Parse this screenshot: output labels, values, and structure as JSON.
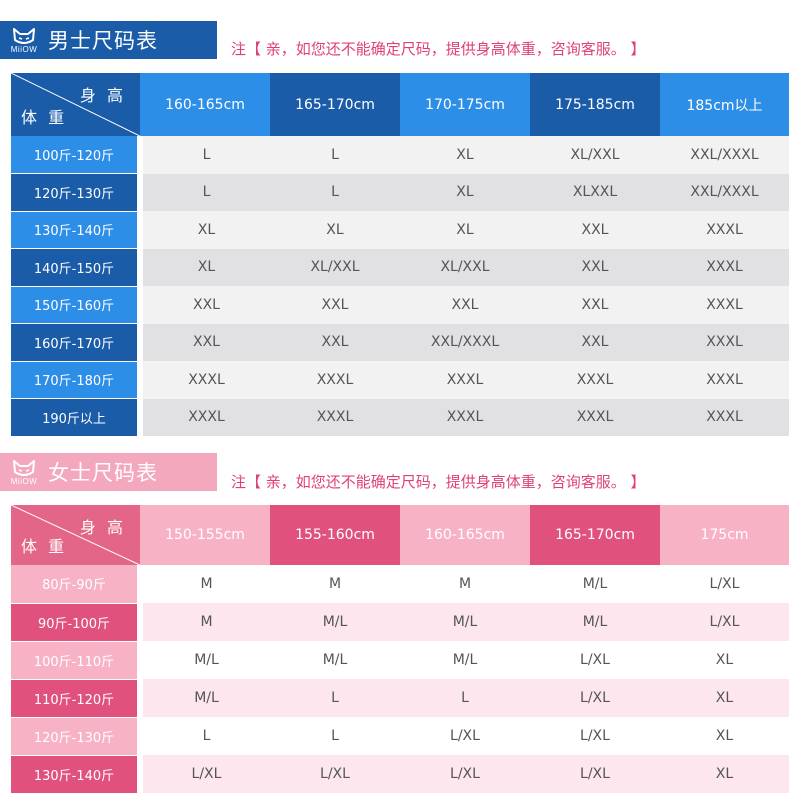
{
  "men": {
    "logo_text": "MiiOW",
    "title": "男士尺码表",
    "note": "注【 亲，如您还不能确定尺码，提供身高体重，咨询客服。 】",
    "corner_height": "身 高",
    "corner_weight": "体 重",
    "heights": [
      "160-165cm",
      "165-170cm",
      "170-175cm",
      "175-185cm",
      "185cm以上"
    ],
    "rows": [
      {
        "weight": "100斤-120斤",
        "sizes": [
          "L",
          "L",
          "XL",
          "XL/XXL",
          "XXL/XXXL"
        ]
      },
      {
        "weight": "120斤-130斤",
        "sizes": [
          "L",
          "L",
          "XL",
          "XLXXL",
          "XXL/XXXL"
        ]
      },
      {
        "weight": "130斤-140斤",
        "sizes": [
          "XL",
          "XL",
          "XL",
          "XXL",
          "XXXL"
        ]
      },
      {
        "weight": "140斤-150斤",
        "sizes": [
          "XL",
          "XL/XXL",
          "XL/XXL",
          "XXL",
          "XXXL"
        ]
      },
      {
        "weight": "150斤-160斤",
        "sizes": [
          "XXL",
          "XXL",
          "XXL",
          "XXL",
          "XXXL"
        ]
      },
      {
        "weight": "160斤-170斤",
        "sizes": [
          "XXL",
          "XXL",
          "XXL/XXXL",
          "XXL",
          "XXXL"
        ]
      },
      {
        "weight": "170斤-180斤",
        "sizes": [
          "XXXL",
          "XXXL",
          "XXXL",
          "XXXL",
          "XXXL"
        ]
      },
      {
        "weight": "190斤以上",
        "sizes": [
          "XXXL",
          "XXXL",
          "XXXL",
          "XXXL",
          "XXXL"
        ]
      }
    ],
    "colors": {
      "title_bg": "#1a5ca8",
      "col_heads": [
        "#2d8ee8",
        "#1a5ca8",
        "#2d8ee8",
        "#1a5ca8",
        "#2d8ee8"
      ],
      "row_heads": [
        "#2d8ee8",
        "#1a5ca8",
        "#2d8ee8",
        "#1a5ca8",
        "#2d8ee8",
        "#1a5ca8",
        "#2d8ee8",
        "#1a5ca8"
      ]
    }
  },
  "women": {
    "logo_text": "MiiOW",
    "title": "女士尺码表",
    "note": "注【 亲，如您还不能确定尺码，提供身高体重，咨询客服。 】",
    "corner_height": "身 高",
    "corner_weight": "体 重",
    "heights": [
      "150-155cm",
      "155-160cm",
      "160-165cm",
      "165-170cm",
      "175cm"
    ],
    "rows": [
      {
        "weight": "80斤-90斤",
        "sizes": [
          "M",
          "M",
          "M",
          "M/L",
          "L/XL"
        ]
      },
      {
        "weight": "90斤-100斤",
        "sizes": [
          "M",
          "M/L",
          "M/L",
          "M/L",
          "L/XL"
        ]
      },
      {
        "weight": "100斤-110斤",
        "sizes": [
          "M/L",
          "M/L",
          "M/L",
          "L/XL",
          "XL"
        ]
      },
      {
        "weight": "110斤-120斤",
        "sizes": [
          "M/L",
          "L",
          "L",
          "L/XL",
          "XL"
        ]
      },
      {
        "weight": "120斤-130斤",
        "sizes": [
          "L",
          "L",
          "L/XL",
          "L/XL",
          "XL"
        ]
      },
      {
        "weight": "130斤-140斤",
        "sizes": [
          "L/XL",
          "L/XL",
          "L/XL",
          "L/XL",
          "XL"
        ]
      }
    ],
    "colors": {
      "title_bg": "#f3a8be",
      "col_heads": [
        "#f7b3c5",
        "#e0527d",
        "#f7b3c5",
        "#e0527d",
        "#f7b3c5"
      ],
      "row_heads": [
        "#f7b3c5",
        "#e0527d",
        "#f7b3c5",
        "#e0527d",
        "#f7b3c5",
        "#e0527d"
      ]
    }
  }
}
